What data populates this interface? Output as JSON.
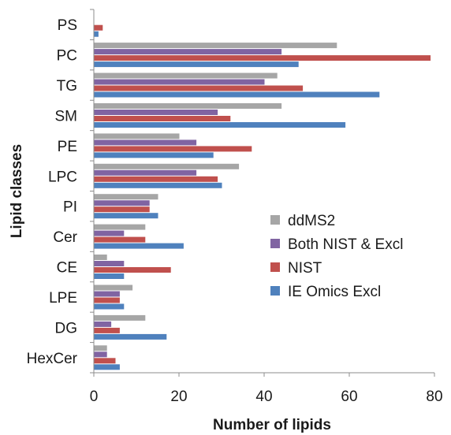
{
  "chart_data": {
    "type": "bar",
    "orientation": "horizontal",
    "title": "",
    "xlabel": "Number of lipids",
    "ylabel": "Lipid classes",
    "xlim": [
      0,
      80
    ],
    "xticks": [
      0,
      20,
      40,
      60,
      80
    ],
    "grid": false,
    "legend_position": "right-middle",
    "categories": [
      "PS",
      "PC",
      "TG",
      "SM",
      "PE",
      "LPC",
      "PI",
      "Cer",
      "CE",
      "LPE",
      "DG",
      "HexCer"
    ],
    "series": [
      {
        "name": "ddMS2",
        "color": "#a6a6a6",
        "values": [
          0,
          57,
          43,
          44,
          20,
          34,
          15,
          12,
          3,
          9,
          12,
          3
        ]
      },
      {
        "name": "Both NIST & Excl",
        "color": "#8064a2",
        "values": [
          0,
          44,
          40,
          29,
          24,
          24,
          13,
          7,
          7,
          6,
          4,
          3
        ]
      },
      {
        "name": "NIST",
        "color": "#c0504d",
        "values": [
          2,
          79,
          49,
          32,
          37,
          29,
          13,
          12,
          18,
          6,
          6,
          5
        ]
      },
      {
        "name": "IE Omics Excl",
        "color": "#4f81bd",
        "values": [
          1,
          48,
          67,
          59,
          28,
          30,
          15,
          21,
          7,
          7,
          17,
          6
        ]
      }
    ],
    "legend_order": [
      "ddMS2",
      "Both NIST & Excl",
      "NIST",
      "IE Omics Excl"
    ]
  }
}
